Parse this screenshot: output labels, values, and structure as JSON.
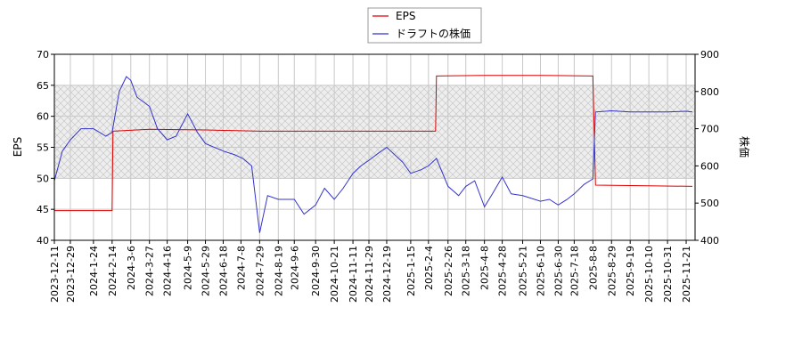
{
  "chart_data": {
    "type": "line",
    "legend": {
      "placement": "top-center",
      "entries": [
        {
          "name": "EPS",
          "color": "#dd0000"
        },
        {
          "name": "ドラフトの株価",
          "color": "#3333cc"
        }
      ]
    },
    "ylabel_left": "EPS",
    "ylabel_right": "株価",
    "ylim_left": [
      40,
      70
    ],
    "ylim_right": [
      400,
      900
    ],
    "yticks_left": [
      "40",
      "45",
      "50",
      "55",
      "60",
      "65",
      "70"
    ],
    "yticks_right": [
      "400",
      "500",
      "600",
      "700",
      "800",
      "900"
    ],
    "band_left": [
      50,
      65
    ],
    "grid": true,
    "xlim": [
      "2023-12-11",
      "2025-12-01"
    ],
    "x_ticks": [
      "2023-12-11",
      "2023-12-29",
      "2024-1-24",
      "2024-2-14",
      "2024-3-6",
      "2024-3-27",
      "2024-4-16",
      "2024-5-9",
      "2024-5-29",
      "2024-6-18",
      "2024-7-8",
      "2024-7-29",
      "2024-8-19",
      "2024-9-6",
      "2024-9-30",
      "2024-10-21",
      "2024-11-11",
      "2024-11-29",
      "2024-12-19",
      "2025-1-15",
      "2025-2-4",
      "2025-2-26",
      "2025-3-18",
      "2025-4-8",
      "2025-4-28",
      "2025-5-21",
      "2025-6-10",
      "2025-6-30",
      "2025-7-18",
      "2025-8-8",
      "2025-8-29",
      "2025-9-19",
      "2025-10-10",
      "2025-10-31",
      "2025-11-21"
    ],
    "series": [
      {
        "name": "EPS",
        "axis": "left",
        "color": "#dd0000",
        "points": [
          [
            "2023-12-11",
            44.8
          ],
          [
            "2024-2-14",
            44.8
          ],
          [
            "2024-2-15",
            57.6
          ],
          [
            "2024-3-27",
            57.9
          ],
          [
            "2024-5-29",
            57.8
          ],
          [
            "2024-7-29",
            57.6
          ],
          [
            "2024-9-30",
            57.6
          ],
          [
            "2024-11-29",
            57.6
          ],
          [
            "2025-2-12",
            57.6
          ],
          [
            "2025-2-13",
            66.5
          ],
          [
            "2025-4-8",
            66.6
          ],
          [
            "2025-6-10",
            66.6
          ],
          [
            "2025-8-8",
            66.5
          ],
          [
            "2025-8-11",
            48.9
          ],
          [
            "2025-10-10",
            48.8
          ],
          [
            "2025-11-28",
            48.7
          ]
        ]
      },
      {
        "name": "ドラフトの株価",
        "axis": "right",
        "color": "#3333cc",
        "points": [
          [
            "2023-12-11",
            560
          ],
          [
            "2023-12-20",
            640
          ],
          [
            "2023-12-29",
            670
          ],
          [
            "2024-1-10",
            700
          ],
          [
            "2024-1-24",
            700
          ],
          [
            "2024-1-31",
            690
          ],
          [
            "2024-2-7",
            680
          ],
          [
            "2024-2-14",
            690
          ],
          [
            "2024-2-22",
            800
          ],
          [
            "2024-3-1",
            840
          ],
          [
            "2024-3-6",
            830
          ],
          [
            "2024-3-13",
            785
          ],
          [
            "2024-3-27",
            760
          ],
          [
            "2024-4-5",
            700
          ],
          [
            "2024-4-16",
            670
          ],
          [
            "2024-4-26",
            680
          ],
          [
            "2024-5-9",
            740
          ],
          [
            "2024-5-20",
            690
          ],
          [
            "2024-5-29",
            660
          ],
          [
            "2024-6-18",
            640
          ],
          [
            "2024-7-1",
            630
          ],
          [
            "2024-7-10",
            620
          ],
          [
            "2024-7-20",
            600
          ],
          [
            "2024-7-29",
            420
          ],
          [
            "2024-8-7",
            520
          ],
          [
            "2024-8-19",
            510
          ],
          [
            "2024-9-6",
            510
          ],
          [
            "2024-9-17",
            470
          ],
          [
            "2024-9-30",
            495
          ],
          [
            "2024-10-10",
            540
          ],
          [
            "2024-10-21",
            510
          ],
          [
            "2024-10-31",
            540
          ],
          [
            "2024-11-11",
            580
          ],
          [
            "2024-11-20",
            600
          ],
          [
            "2024-11-29",
            615
          ],
          [
            "2024-12-10",
            635
          ],
          [
            "2024-12-19",
            650
          ],
          [
            "2025-1-6",
            610
          ],
          [
            "2025-1-15",
            580
          ],
          [
            "2025-1-27",
            590
          ],
          [
            "2025-2-4",
            600
          ],
          [
            "2025-2-13",
            620
          ],
          [
            "2025-2-26",
            545
          ],
          [
            "2025-3-10",
            520
          ],
          [
            "2025-3-18",
            545
          ],
          [
            "2025-3-28",
            560
          ],
          [
            "2025-4-8",
            490
          ],
          [
            "2025-4-17",
            525
          ],
          [
            "2025-4-28",
            570
          ],
          [
            "2025-5-8",
            525
          ],
          [
            "2025-5-21",
            520
          ],
          [
            "2025-6-10",
            505
          ],
          [
            "2025-6-20",
            510
          ],
          [
            "2025-6-30",
            495
          ],
          [
            "2025-7-10",
            510
          ],
          [
            "2025-7-18",
            525
          ],
          [
            "2025-7-29",
            550
          ],
          [
            "2025-8-8",
            565
          ],
          [
            "2025-8-11",
            745
          ],
          [
            "2025-8-29",
            748
          ],
          [
            "2025-9-19",
            745
          ],
          [
            "2025-10-10",
            745
          ],
          [
            "2025-10-31",
            745
          ],
          [
            "2025-11-21",
            747
          ],
          [
            "2025-11-28",
            745
          ]
        ]
      }
    ]
  }
}
